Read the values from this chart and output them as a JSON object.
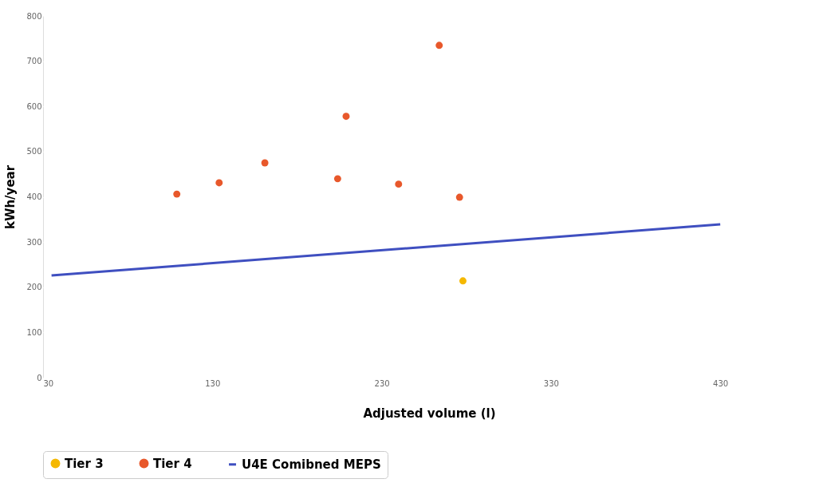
{
  "chart_data": {
    "type": "scatter",
    "xlabel": "Adjusted volume (l)",
    "ylabel": "kWh/year",
    "xlim": [
      30,
      486
    ],
    "xticks": [
      30,
      130,
      230,
      330,
      430
    ],
    "ylim": [
      0,
      800
    ],
    "yticks": [
      0,
      100,
      200,
      300,
      400,
      500,
      600,
      700,
      800
    ],
    "grid": "y",
    "legend": "bottom",
    "series": [
      {
        "name": "Tier 3",
        "color": "#f5b800",
        "marker": "circle",
        "x": [
          278
        ],
        "values": [
          214
        ]
      },
      {
        "name": "Tier 4",
        "color": "#e8582b",
        "marker": "circle",
        "x": [
          109,
          134,
          161,
          204,
          209,
          240,
          264,
          276
        ],
        "values": [
          406,
          431,
          475,
          440,
          578,
          428,
          735,
          399
        ]
      },
      {
        "name": "U4E Comibned MEPS",
        "type": "line",
        "line_style": "solid",
        "marker": "none",
        "color": "#3f4fc0",
        "x": [
          35,
          430
        ],
        "values": [
          226,
          339
        ]
      }
    ]
  }
}
